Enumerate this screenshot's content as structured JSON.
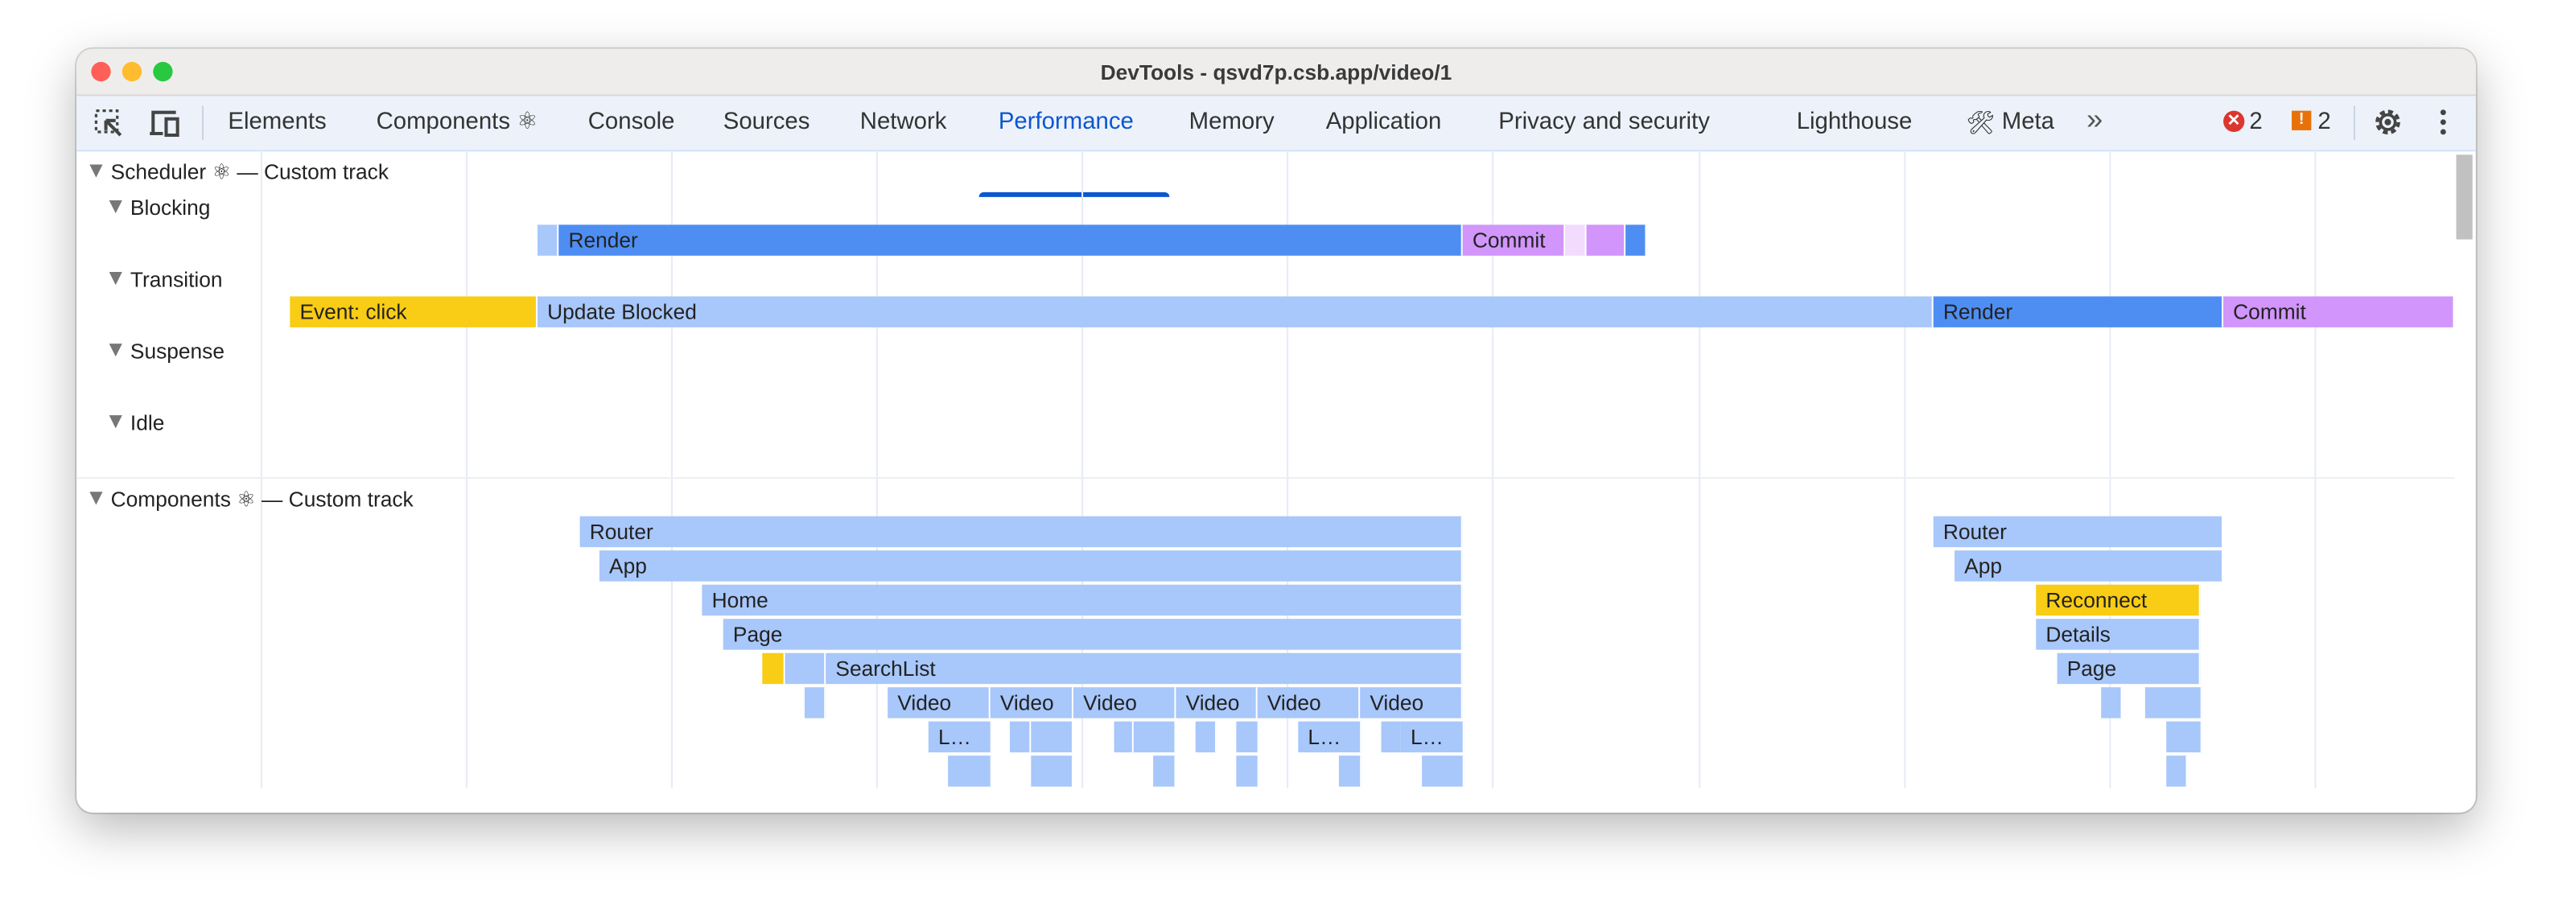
{
  "window": {
    "title": "DevTools - qsvd7p.csb.app/video/1"
  },
  "toolbar": {
    "tabs": [
      {
        "label": "Elements"
      },
      {
        "label": "Components ⚛"
      },
      {
        "label": "Console"
      },
      {
        "label": "Sources"
      },
      {
        "label": "Network"
      },
      {
        "label": "Performance",
        "active": true
      },
      {
        "label": "Memory"
      },
      {
        "label": "Application"
      },
      {
        "label": "Privacy and security"
      },
      {
        "label": "Lighthouse"
      },
      {
        "label": "Meta"
      }
    ],
    "more_tabs": "»",
    "errors_count": "2",
    "warnings_count": "2",
    "accent_color": "#0b57d0"
  },
  "scheduler": {
    "title": "Scheduler ⚛ — Custom track",
    "lanes": [
      "Blocking",
      "Transition",
      "Suspense",
      "Idle"
    ],
    "blocking_bars": [
      "",
      "Render",
      "Commit",
      "",
      "",
      ""
    ],
    "transition_bars": [
      "Event: click",
      "Update Blocked",
      "Render",
      "Commit"
    ]
  },
  "components": {
    "title": "Components ⚛ — Custom track",
    "labels": {
      "router": "Router",
      "app": "App",
      "home": "Home",
      "page": "Page",
      "searchlist": "SearchList",
      "video": "Video",
      "l": "L…",
      "reconnect": "Reconnect",
      "details": "Details"
    }
  },
  "colors": {
    "render": "#4e8ef2",
    "light": "#a8c7fa",
    "commit": "#d195fb",
    "commit_pale": "#f2dbfd",
    "event": "#f9cc15"
  }
}
